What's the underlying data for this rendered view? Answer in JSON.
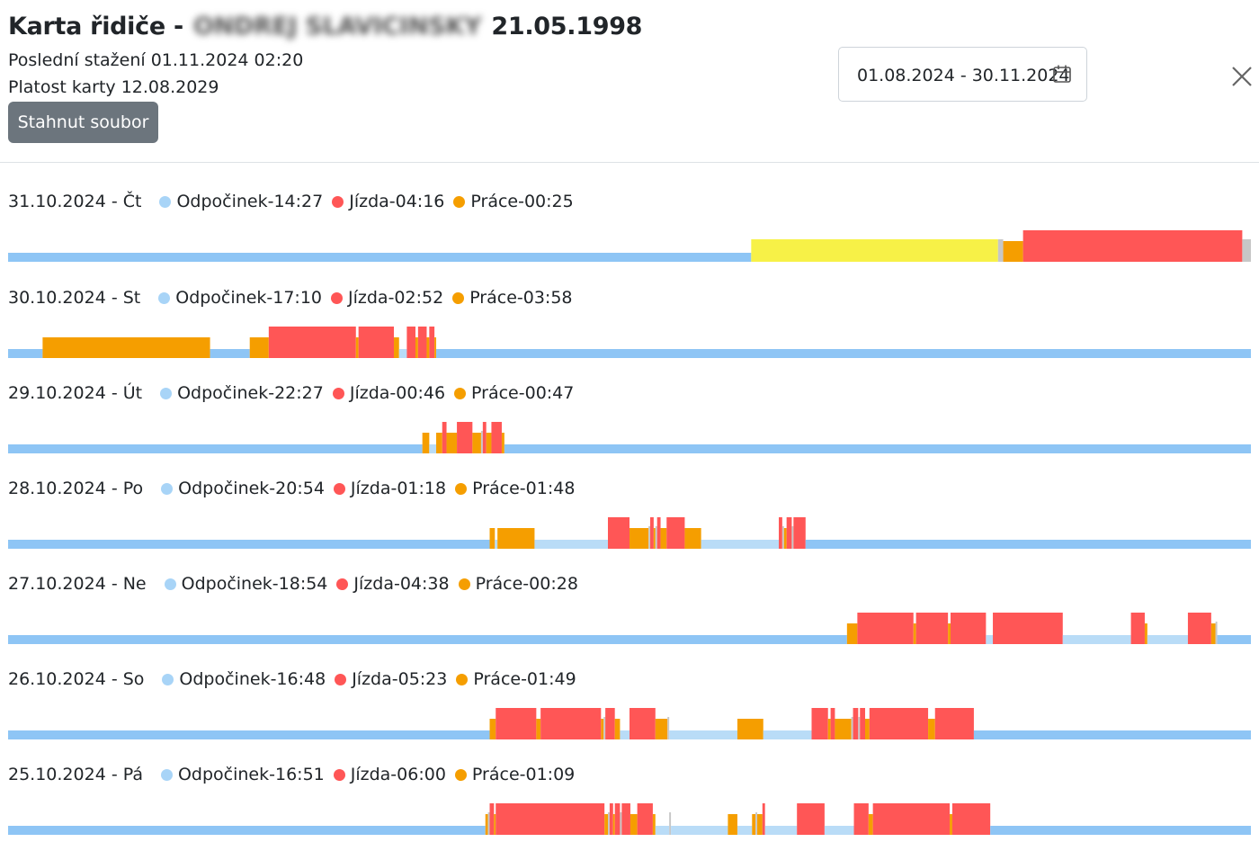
{
  "header": {
    "title_prefix": "Karta řidiče -",
    "driver_name": "ONDREJ SLAVICINSKY",
    "birth_date": "21.05.1998",
    "last_download": "Poslední stažení 01.11.2024 02:20",
    "card_validity": "Platost karty 12.08.2029",
    "download_button": "Stahnut soubor",
    "date_range": "01.08.2024 - 30.11.2024",
    "calendar_icon": "calendar-icon",
    "close_icon": "close-icon"
  },
  "colors": {
    "rest": "#8ec5f5",
    "rest_light": "#b9dcf7",
    "drive": "#ff5656",
    "work": "#f59e00",
    "avail": "#f7f147",
    "gap": "#c7c7c7",
    "dot_rest": "#a8d4f7"
  },
  "day_span_minutes": 1440,
  "days": [
    {
      "date": "31.10.2024 - Čt",
      "rest": "Odpočinek-14:27",
      "drive": "Jízda-04:16",
      "work": "Práce-00:25",
      "segments": [
        [
          "rest",
          0,
          861
        ],
        [
          "avail",
          861,
          1147
        ],
        [
          "gap",
          1147,
          1153
        ],
        [
          "work",
          1153,
          1176
        ],
        [
          "drive",
          1176,
          1430
        ],
        [
          "gap",
          1430,
          1440
        ]
      ]
    },
    {
      "date": "30.10.2024 - St",
      "rest": "Odpočinek-17:10",
      "drive": "Jízda-02:52",
      "work": "Práce-03:58",
      "segments": [
        [
          "rest",
          0,
          40
        ],
        [
          "work",
          40,
          234
        ],
        [
          "rest",
          234,
          280
        ],
        [
          "work",
          280,
          302
        ],
        [
          "drive",
          302,
          403
        ],
        [
          "work",
          403,
          406
        ],
        [
          "drive",
          406,
          447
        ],
        [
          "work",
          447,
          453
        ],
        [
          "rest_light",
          453,
          462
        ],
        [
          "drive",
          462,
          472
        ],
        [
          "work",
          472,
          475
        ],
        [
          "drive",
          475,
          485
        ],
        [
          "work",
          485,
          488
        ],
        [
          "drive",
          488,
          494
        ],
        [
          "work",
          494,
          496
        ],
        [
          "rest",
          496,
          1440
        ]
      ]
    },
    {
      "date": "29.10.2024 - Út",
      "rest": "Odpočinek-22:27",
      "drive": "Jízda-00:46",
      "work": "Práce-00:47",
      "segments": [
        [
          "rest",
          0,
          480
        ],
        [
          "work",
          480,
          488
        ],
        [
          "rest_light",
          488,
          496
        ],
        [
          "work",
          496,
          503
        ],
        [
          "drive",
          503,
          508
        ],
        [
          "work",
          508,
          520
        ],
        [
          "drive",
          520,
          538
        ],
        [
          "work",
          538,
          548
        ],
        [
          "gap",
          548,
          550
        ],
        [
          "drive",
          550,
          554
        ],
        [
          "work",
          554,
          560
        ],
        [
          "drive",
          560,
          572
        ],
        [
          "work",
          572,
          575
        ],
        [
          "rest",
          575,
          1440
        ]
      ]
    },
    {
      "date": "28.10.2024 - Po",
      "rest": "Odpočinek-20:54",
      "drive": "Jízda-01:18",
      "work": "Práce-01:48",
      "segments": [
        [
          "rest",
          0,
          558
        ],
        [
          "work",
          558,
          564
        ],
        [
          "rest_light",
          564,
          567
        ],
        [
          "work",
          567,
          610
        ],
        [
          "rest_light",
          610,
          695
        ],
        [
          "drive",
          695,
          720
        ],
        [
          "work",
          720,
          742
        ],
        [
          "gap",
          742,
          744
        ],
        [
          "drive",
          744,
          748
        ],
        [
          "work",
          748,
          750
        ],
        [
          "gap",
          750,
          752
        ],
        [
          "drive",
          752,
          756
        ],
        [
          "work",
          756,
          763
        ],
        [
          "drive",
          763,
          784
        ],
        [
          "work",
          784,
          803
        ],
        [
          "rest_light",
          803,
          893
        ],
        [
          "drive",
          893,
          897
        ],
        [
          "gap",
          897,
          899
        ],
        [
          "work",
          899,
          902
        ],
        [
          "drive",
          902,
          908
        ],
        [
          "gap",
          908,
          910
        ],
        [
          "drive",
          910,
          924
        ],
        [
          "rest",
          924,
          1440
        ]
      ]
    },
    {
      "date": "27.10.2024 - Ne",
      "rest": "Odpočinek-18:54",
      "drive": "Jízda-04:38",
      "work": "Práce-00:28",
      "segments": [
        [
          "rest",
          0,
          972
        ],
        [
          "work",
          972,
          984
        ],
        [
          "drive",
          984,
          1049
        ],
        [
          "work",
          1049,
          1052
        ],
        [
          "drive",
          1052,
          1089
        ],
        [
          "work",
          1089,
          1092
        ],
        [
          "drive",
          1092,
          1133
        ],
        [
          "rest_light",
          1133,
          1141
        ],
        [
          "drive",
          1141,
          1222
        ],
        [
          "rest_light",
          1222,
          1301
        ],
        [
          "drive",
          1301,
          1317
        ],
        [
          "work",
          1317,
          1320
        ],
        [
          "rest_light",
          1320,
          1367
        ],
        [
          "drive",
          1367,
          1394
        ],
        [
          "work",
          1394,
          1399
        ],
        [
          "gap",
          1399,
          1401
        ],
        [
          "rest",
          1401,
          1440
        ]
      ]
    },
    {
      "date": "26.10.2024 - So",
      "rest": "Odpočinek-16:48",
      "drive": "Jízda-05:23",
      "work": "Práce-01:49",
      "segments": [
        [
          "rest",
          0,
          558
        ],
        [
          "work",
          558,
          565
        ],
        [
          "drive",
          565,
          612
        ],
        [
          "work",
          612,
          617
        ],
        [
          "drive",
          617,
          687
        ],
        [
          "work",
          687,
          690
        ],
        [
          "gap",
          690,
          692
        ],
        [
          "drive",
          692,
          703
        ],
        [
          "work",
          703,
          709
        ],
        [
          "rest_light",
          709,
          720
        ],
        [
          "drive",
          720,
          750
        ],
        [
          "work",
          750,
          764
        ],
        [
          "gap",
          764,
          766
        ],
        [
          "rest_light",
          766,
          845
        ],
        [
          "work",
          845,
          875
        ],
        [
          "rest_light",
          875,
          931
        ],
        [
          "drive",
          931,
          950
        ],
        [
          "work",
          950,
          953
        ],
        [
          "drive",
          953,
          958
        ],
        [
          "work",
          958,
          977
        ],
        [
          "gap",
          977,
          979
        ],
        [
          "drive",
          979,
          985
        ],
        [
          "gap",
          985,
          987
        ],
        [
          "drive",
          987,
          993
        ],
        [
          "work",
          993,
          998
        ],
        [
          "drive",
          998,
          1066
        ],
        [
          "work",
          1066,
          1074
        ],
        [
          "drive",
          1074,
          1119
        ],
        [
          "rest",
          1119,
          1440
        ]
      ]
    },
    {
      "date": "25.10.2024 - Pá",
      "rest": "Odpočinek-16:51",
      "drive": "Jízda-06:00",
      "work": "Práce-01:09",
      "segments": [
        [
          "rest",
          0,
          553
        ],
        [
          "work",
          553,
          556
        ],
        [
          "gap",
          556,
          558
        ],
        [
          "drive",
          558,
          563
        ],
        [
          "work",
          563,
          565
        ],
        [
          "drive",
          565,
          691
        ],
        [
          "work",
          691,
          695
        ],
        [
          "gap",
          695,
          697
        ],
        [
          "drive",
          697,
          701
        ],
        [
          "work",
          701,
          703
        ],
        [
          "drive",
          703,
          709
        ],
        [
          "gap",
          709,
          711
        ],
        [
          "drive",
          711,
          721
        ],
        [
          "work",
          721,
          729
        ],
        [
          "drive",
          729,
          747
        ],
        [
          "work",
          747,
          750
        ],
        [
          "rest_light",
          750,
          766
        ],
        [
          "gap",
          766,
          768
        ],
        [
          "rest_light",
          768,
          834
        ],
        [
          "work",
          834,
          845
        ],
        [
          "rest_light",
          845,
          862
        ],
        [
          "work",
          862,
          866
        ],
        [
          "gap",
          866,
          868
        ],
        [
          "work",
          868,
          874
        ],
        [
          "drive",
          874,
          877
        ],
        [
          "rest_light",
          877,
          914
        ],
        [
          "drive",
          914,
          946
        ],
        [
          "rest_light",
          946,
          980
        ],
        [
          "drive",
          980,
          997
        ],
        [
          "work",
          997,
          1002
        ],
        [
          "drive",
          1002,
          1091
        ],
        [
          "work",
          1091,
          1094
        ],
        [
          "drive",
          1094,
          1138
        ],
        [
          "rest",
          1138,
          1440
        ]
      ]
    }
  ]
}
